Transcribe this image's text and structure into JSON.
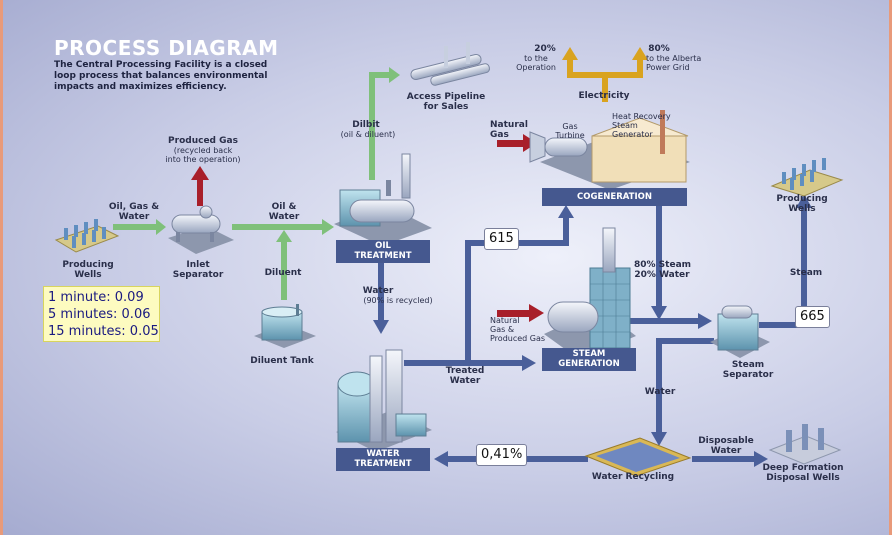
{
  "header": {
    "title": "PROCESS DIAGRAM",
    "intro": "The Central Processing Facility is a closed loop process that balances environmental impacts and maximizes efficiency."
  },
  "load_overlay": {
    "line1": "1 minute: 0.09",
    "line2": "5 minutes: 0.06",
    "line3": "15 minutes: 0.05"
  },
  "badges": {
    "b615": "615",
    "b665": "665",
    "b041": "0,41%"
  },
  "stages": {
    "oil_treatment": [
      "OIL",
      "TREATMENT"
    ],
    "cogeneration": "COGENERATION",
    "steam_generation": [
      "STEAM",
      "GENERATION"
    ],
    "water_treatment": [
      "WATER",
      "TREATMENT"
    ]
  },
  "labels": {
    "producing_wells_left": [
      "Producing",
      "Wells"
    ],
    "oil_gas_water_1": [
      "Oil, Gas &",
      "Water"
    ],
    "inlet_separator": [
      "Inlet",
      "Separator"
    ],
    "produced_gas": "Produced Gas",
    "produced_gas_sub": [
      "(recycled back",
      "into the operation)"
    ],
    "oil_water": [
      "Oil &",
      "Water"
    ],
    "diluent": "Diluent",
    "diluent_tank": "Diluent Tank",
    "dilbit": "Dilbit",
    "dilbit_sub": "(oil & diluent)",
    "access_pipeline": [
      "Access Pipeline",
      "for Sales"
    ],
    "water_down": "Water",
    "water_down_sub": "(90% is recycled)",
    "treated_water": [
      "Treated",
      "Water"
    ],
    "electricity": "Electricity",
    "pct20": "20%",
    "pct20_sub": [
      "to the",
      "Operation"
    ],
    "pct80": "80%",
    "pct80_sub": [
      "to the Alberta",
      "Power Grid"
    ],
    "natural_gas_top": [
      "Natural",
      "Gas"
    ],
    "gas_turbine": [
      "Gas",
      "Turbine"
    ],
    "hrsg": [
      "Heat Recovery",
      "Steam",
      "Generator"
    ],
    "natural_gas_produced": [
      "Natural",
      "Gas &",
      "Produced Gas"
    ],
    "steam_water_80_20": [
      "80% Steam",
      "20% Water"
    ],
    "steam_separator": [
      "Steam",
      "Separator"
    ],
    "steam_up": "Steam",
    "producing_wells_right": [
      "Producing",
      "Wells"
    ],
    "water_right": "Water",
    "disposable_water": [
      "Disposable",
      "Water"
    ],
    "water_recycling": "Water Recycling",
    "deep_formation": [
      "Deep Formation",
      "Disposal Wells"
    ]
  },
  "colors": {
    "flow_green": "#7fc07a",
    "flow_blue": "#4a5f9a",
    "flow_red": "#a81f2a",
    "electricity_gold": "#d9a31f",
    "stage_box": "#45588f"
  }
}
